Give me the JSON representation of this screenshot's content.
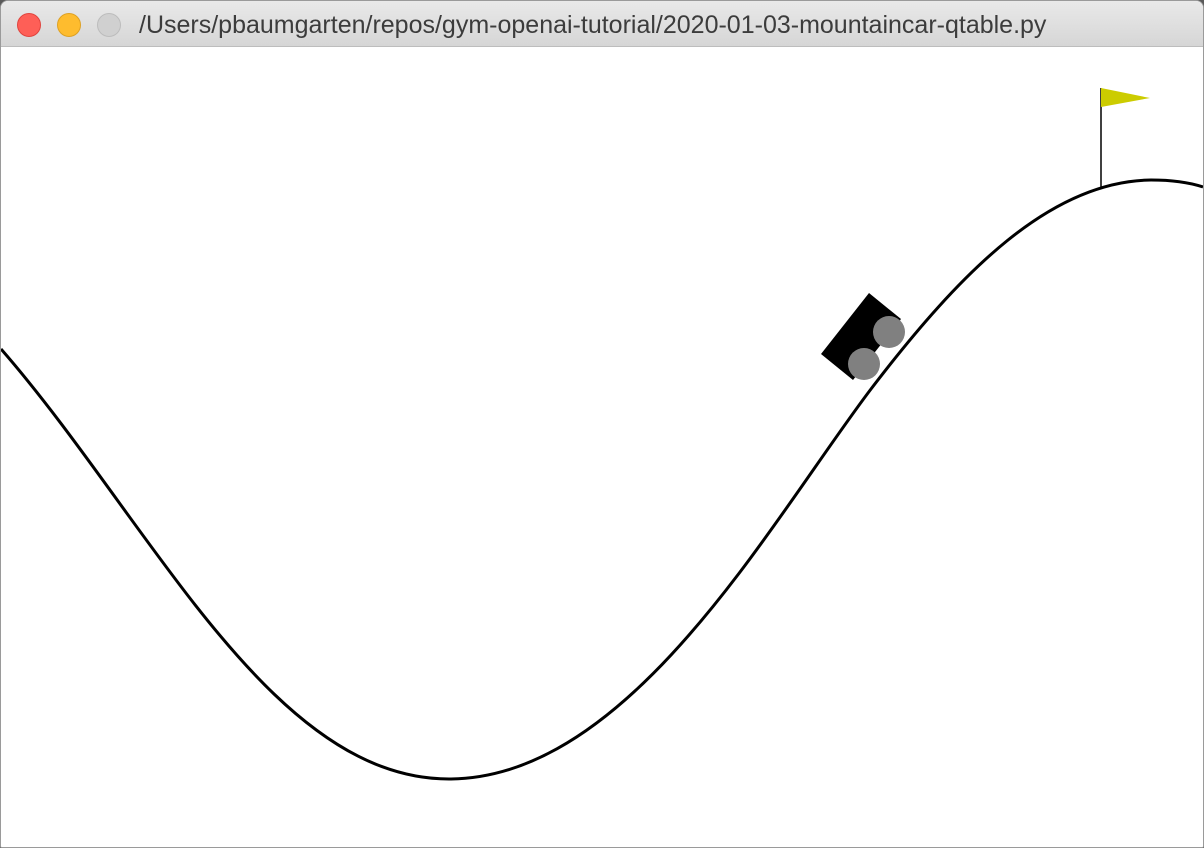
{
  "window": {
    "title": "/Users/pbaumgarten/repos/gym-openai-tutorial/2020-01-03-mountaincar-qtable.py"
  },
  "controls": {
    "close_icon": "close-icon",
    "minimize_icon": "minimize-icon",
    "zoom_icon": "zoom-icon"
  },
  "scene": {
    "environment": "MountainCar",
    "track_color": "#000000",
    "car_body_color": "#000000",
    "wheel_color": "#808080",
    "flag_color": "#cccc00",
    "flagpole_color": "#000000"
  }
}
